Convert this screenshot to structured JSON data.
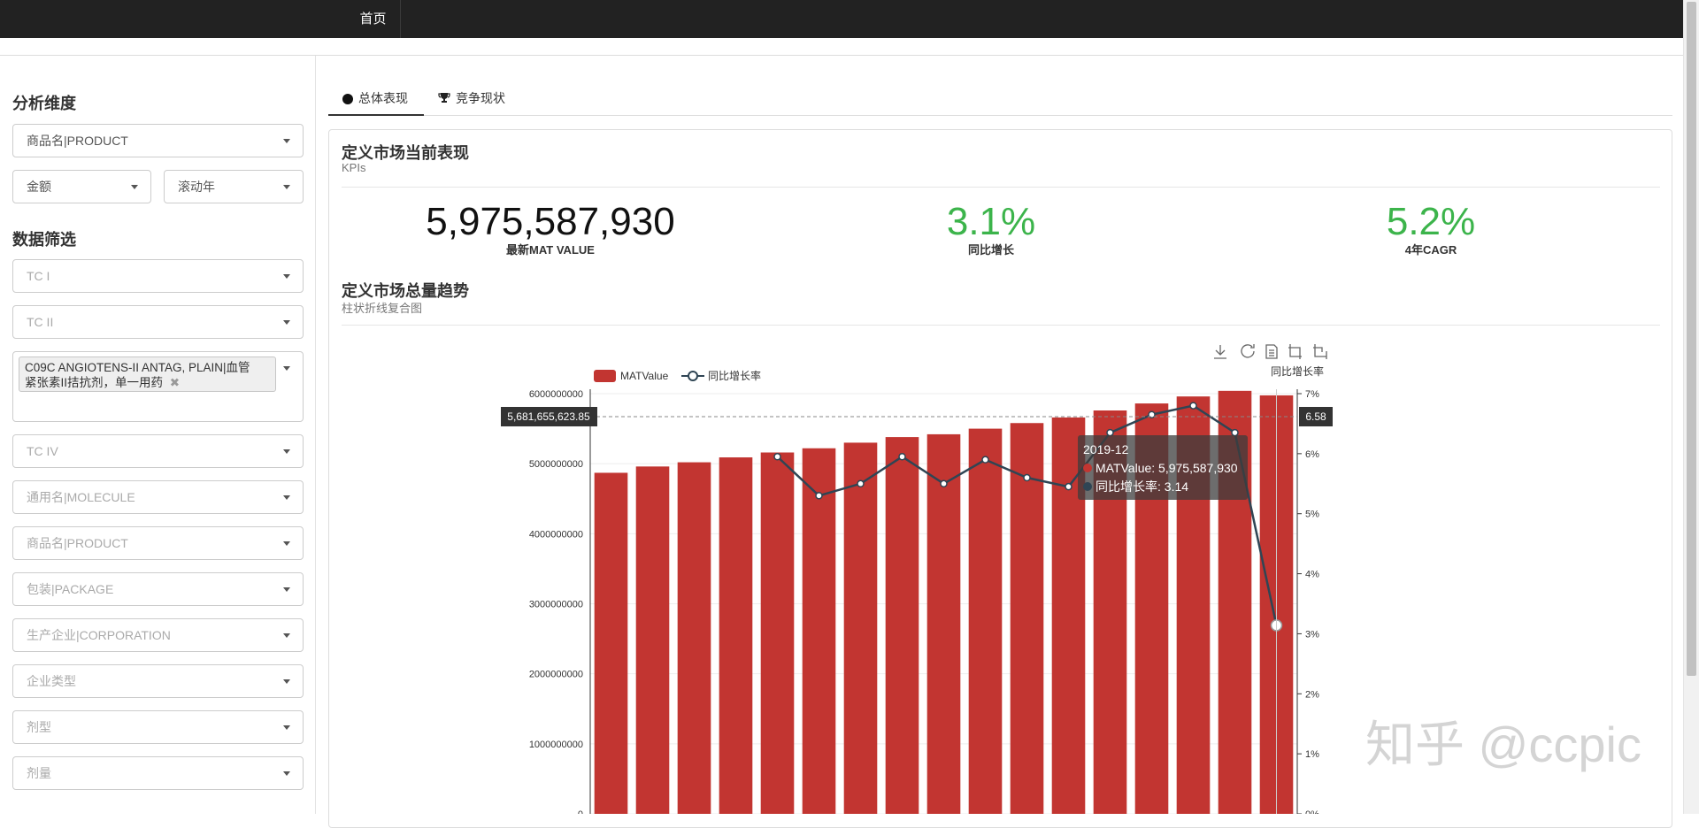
{
  "navbar": {
    "tab_home": "首页"
  },
  "sidebar": {
    "analysis_title": "分析维度",
    "dimension": "商品名|PRODUCT",
    "metric": "金额",
    "period": "滚动年",
    "filter_title": "数据筛选",
    "tc1": "TC I",
    "tc2": "TC II",
    "tc3_chip_line1": "C09C ANGIOTENS-II ANTAG, PLAIN|血管",
    "tc3_chip_line2": "紧张素II拮抗剂，单一用药",
    "tc3_chip_remove": "✖",
    "tc4": "TC IV",
    "molecule": "通用名|MOLECULE",
    "product": "商品名|PRODUCT",
    "package": "包装|PACKAGE",
    "corporation": "生产企业|CORPORATION",
    "corp_type": "企业类型",
    "formulation": "剂型",
    "strength": "剂量"
  },
  "tabs": {
    "overview": "总体表现",
    "competition": "竞争现状"
  },
  "kpi_section": {
    "title": "定义市场当前表现",
    "subtitle": "KPIs",
    "mat_value": "5,975,587,930",
    "mat_label": "最新MAT VALUE",
    "yoy_value": "3.1%",
    "yoy_label": "同比增长",
    "cagr_value": "5.2%",
    "cagr_label": "4年CAGR",
    "accent_color": "#3cb44b"
  },
  "trend_section": {
    "title": "定义市场总量趋势",
    "subtitle": "柱状折线复合图"
  },
  "watermark": "知乎 @ccpic",
  "chart_data": {
    "type": "bar",
    "series": [
      {
        "name": "MATValue",
        "type": "bar",
        "color": "#c23531",
        "values": [
          4870000000,
          4960000000,
          5020000000,
          5090000000,
          5160000000,
          5220000000,
          5300000000,
          5380000000,
          5420000000,
          5500000000,
          5580000000,
          5660000000,
          5760000000,
          5860000000,
          5960000000,
          6040000000,
          5975587930
        ]
      },
      {
        "name": "同比增长率",
        "type": "line",
        "color": "#2f4554",
        "values": [
          null,
          null,
          null,
          null,
          5.95,
          5.3,
          5.5,
          5.95,
          5.5,
          5.9,
          5.6,
          5.45,
          6.35,
          6.65,
          6.8,
          6.35,
          3.14
        ]
      }
    ],
    "y_left": {
      "min": 0,
      "max": 6000000000,
      "ticks": [
        "0",
        "1000000000",
        "2000000000",
        "3000000000",
        "4000000000",
        "5000000000",
        "6000000000"
      ]
    },
    "y_right": {
      "label": "同比增长率",
      "min": 0,
      "max": 7,
      "ticks": [
        "0%",
        "1%",
        "2%",
        "3%",
        "4%",
        "5%",
        "6%",
        "7%"
      ]
    },
    "crosshair": {
      "left_value": "5,681,655,623.85",
      "right_value": "6.58"
    },
    "tooltip": {
      "title": "2019-12",
      "line1": "MATValue: 5,975,587,930",
      "line2": "同比增长率: 3.14"
    },
    "toolbox": [
      "download-icon",
      "refresh-icon",
      "data-view-icon",
      "zoom-icon",
      "zoom-reset-icon"
    ],
    "legend_position": "top-left"
  }
}
